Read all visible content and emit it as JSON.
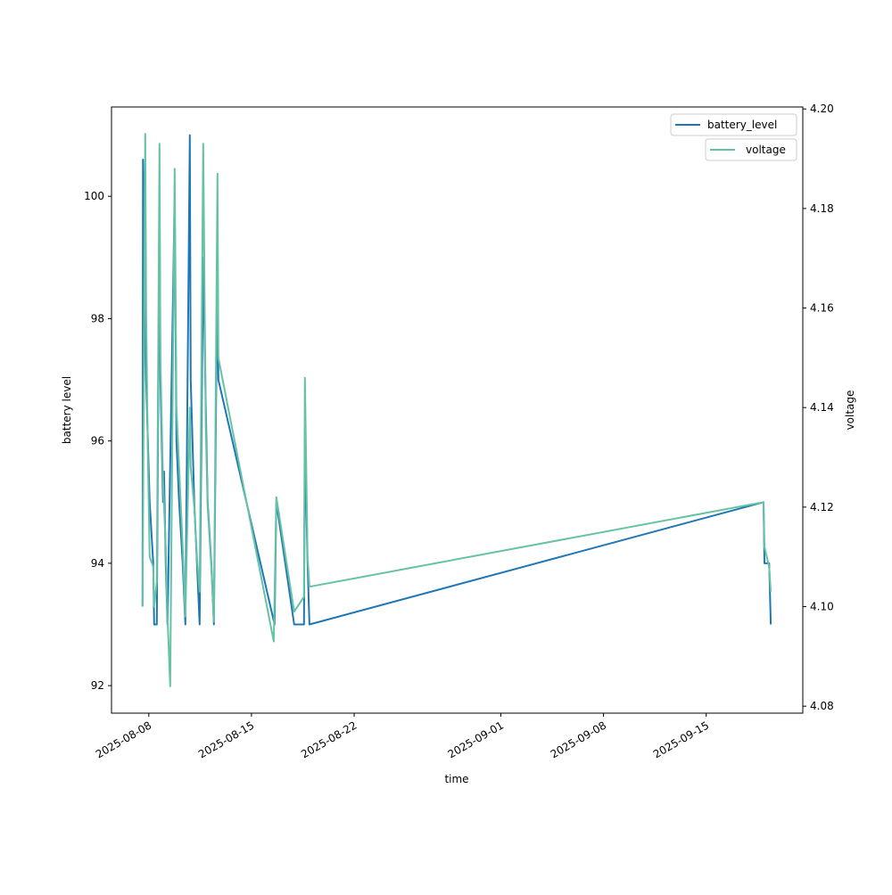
{
  "chart_data": {
    "type": "line",
    "title": "",
    "xlabel": "time",
    "ylabel": "battery level",
    "ylabel_right": "voltage",
    "xlim": [
      "2025-08-05T11:00",
      "2025-09-21T14:00"
    ],
    "ylim": [
      91.55,
      101.46
    ],
    "ylim_right": [
      4.0786,
      4.2004
    ],
    "x_ticks": [
      "2025-08-08",
      "2025-08-15",
      "2025-08-22",
      "2025-09-01",
      "2025-09-08",
      "2025-09-15"
    ],
    "y_ticks": [
      92,
      94,
      96,
      98,
      100
    ],
    "y_ticks_right": [
      "4.08",
      "4.10",
      "4.12",
      "4.14",
      "4.16",
      "4.18",
      "4.20"
    ],
    "legend": {
      "placement": "top-right"
    },
    "series": [
      {
        "name": "battery_level",
        "axis": "left",
        "color": "#1f77b4",
        "points": [
          [
            "2025-08-07T13:47",
            93.3
          ],
          [
            "2025-08-07T14:30",
            100.6
          ],
          [
            "2025-08-07T19:40",
            97
          ],
          [
            "2025-08-07T22:30",
            96
          ],
          [
            "2025-08-08T01:30",
            95
          ],
          [
            "2025-08-08T07:20",
            94
          ],
          [
            "2025-08-08T08:45",
            93
          ],
          [
            "2025-08-08T13:10",
            93
          ],
          [
            "2025-08-08T17:30",
            100
          ],
          [
            "2025-08-08T19:00",
            97
          ],
          [
            "2025-08-08T23:20",
            95
          ],
          [
            "2025-08-09T01:00",
            95.5
          ],
          [
            "2025-08-09T03:45",
            94
          ],
          [
            "2025-08-09T06:40",
            93
          ],
          [
            "2025-08-09T18:20",
            100
          ],
          [
            "2025-08-09T21:15",
            96
          ],
          [
            "2025-08-10T01:40",
            95
          ],
          [
            "2025-08-10T07:30",
            94
          ],
          [
            "2025-08-10T11:50",
            93
          ],
          [
            "2025-08-10T19:10",
            101
          ],
          [
            "2025-08-10T20:35",
            97
          ],
          [
            "2025-08-11T02:30",
            95
          ],
          [
            "2025-08-11T06:50",
            94
          ],
          [
            "2025-08-11T11:15",
            93
          ],
          [
            "2025-08-11T17:00",
            99
          ],
          [
            "2025-08-11T21:25",
            96.5
          ],
          [
            "2025-08-12T00:20",
            95
          ],
          [
            "2025-08-12T06:15",
            94
          ],
          [
            "2025-08-12T10:35",
            93
          ],
          [
            "2025-08-12T16:25",
            99
          ],
          [
            "2025-08-12T17:50",
            97
          ],
          [
            "2025-08-16T13:50",
            93
          ],
          [
            "2025-08-16T16:45",
            95
          ],
          [
            "2025-08-17T21:55",
            93
          ],
          [
            "2025-08-18T13:55",
            93
          ],
          [
            "2025-08-18T15:25",
            96
          ],
          [
            "2025-08-18T19:50",
            94
          ],
          [
            "2025-08-18T22:50",
            93
          ],
          [
            "2025-09-18T21:50",
            95
          ],
          [
            "2025-09-18T23:15",
            94
          ],
          [
            "2025-09-19T06:55",
            94
          ],
          [
            "2025-09-19T09:35",
            93
          ]
        ]
      },
      {
        "name": "voltage",
        "axis": "right",
        "color": "#66c2a5",
        "points": [
          [
            "2025-08-07T13:47",
            4.1
          ],
          [
            "2025-08-07T18:10",
            4.195
          ],
          [
            "2025-08-07T19:40",
            4.16
          ],
          [
            "2025-08-07T22:30",
            4.13
          ],
          [
            "2025-08-08T01:30",
            4.11
          ],
          [
            "2025-08-08T07:20",
            4.108
          ],
          [
            "2025-08-08T08:45",
            4.1
          ],
          [
            "2025-08-08T13:10",
            4.105
          ],
          [
            "2025-08-08T17:30",
            4.193
          ],
          [
            "2025-08-08T19:00",
            4.15
          ],
          [
            "2025-08-08T23:20",
            4.125
          ],
          [
            "2025-08-09T03:45",
            4.112
          ],
          [
            "2025-08-09T06:40",
            4.098
          ],
          [
            "2025-08-09T11:00",
            4.084
          ],
          [
            "2025-08-09T18:20",
            4.188
          ],
          [
            "2025-08-09T21:15",
            4.14
          ],
          [
            "2025-08-10T01:40",
            4.128
          ],
          [
            "2025-08-10T07:30",
            4.112
          ],
          [
            "2025-08-10T11:50",
            4.098
          ],
          [
            "2025-08-10T19:10",
            4.14
          ],
          [
            "2025-08-10T20:35",
            4.128
          ],
          [
            "2025-08-11T02:30",
            4.12
          ],
          [
            "2025-08-11T06:50",
            4.11
          ],
          [
            "2025-08-11T11:15",
            4.103
          ],
          [
            "2025-08-11T17:00",
            4.193
          ],
          [
            "2025-08-11T21:25",
            4.135
          ],
          [
            "2025-08-12T00:20",
            4.12
          ],
          [
            "2025-08-12T06:15",
            4.108
          ],
          [
            "2025-08-12T10:35",
            4.097
          ],
          [
            "2025-08-12T16:25",
            4.187
          ],
          [
            "2025-08-12T17:50",
            4.15
          ],
          [
            "2025-08-16T12:25",
            4.093
          ],
          [
            "2025-08-16T16:45",
            4.122
          ],
          [
            "2025-08-17T21:55",
            4.099
          ],
          [
            "2025-08-18T13:55",
            4.102
          ],
          [
            "2025-08-18T15:25",
            4.146
          ],
          [
            "2025-08-18T19:50",
            4.11
          ],
          [
            "2025-08-18T22:50",
            4.104
          ],
          [
            "2025-09-18T21:50",
            4.121
          ],
          [
            "2025-09-18T23:15",
            4.112
          ],
          [
            "2025-09-19T06:55",
            4.108
          ],
          [
            "2025-09-19T09:35",
            4.103
          ]
        ]
      }
    ]
  }
}
